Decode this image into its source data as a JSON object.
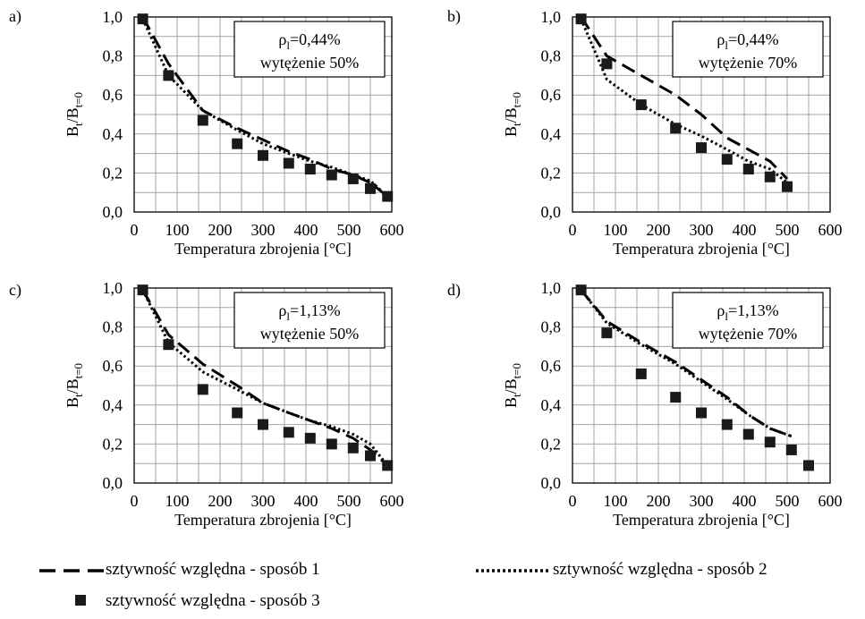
{
  "chart_data": [
    {
      "panel_label": "a)",
      "type": "line",
      "xlabel": "Temperatura zbrojenia [°C]",
      "ylabel_main": "B",
      "ylabel_sub1": "t",
      "ylabel_mid": "/B",
      "ylabel_sub2": "t=0",
      "xlim": [
        0,
        600
      ],
      "ylim": [
        0.0,
        1.0
      ],
      "xticks": [
        "0",
        "100",
        "200",
        "300",
        "400",
        "500",
        "600"
      ],
      "yticks": [
        "0,0",
        "0,2",
        "0,4",
        "0,6",
        "0,8",
        "1,0"
      ],
      "grid": true,
      "annotation": {
        "rho": "ρ",
        "rho_sub": "l",
        "rho_value": "=0,44%",
        "line2": "wytężenie 50%"
      },
      "series": [
        {
          "name": "sztywność względna - sposób 1",
          "style": "dashed",
          "points": [
            [
              20,
              1.0
            ],
            [
              80,
              0.76
            ],
            [
              160,
              0.52
            ],
            [
              240,
              0.43
            ],
            [
              300,
              0.37
            ],
            [
              360,
              0.31
            ],
            [
              410,
              0.27
            ],
            [
              460,
              0.22
            ],
            [
              510,
              0.19
            ],
            [
              550,
              0.15
            ],
            [
              590,
              0.08
            ]
          ]
        },
        {
          "name": "sztywność względna - sposób 2",
          "style": "dotted",
          "points": [
            [
              20,
              0.99
            ],
            [
              80,
              0.7
            ],
            [
              160,
              0.52
            ],
            [
              240,
              0.42
            ],
            [
              300,
              0.35
            ],
            [
              360,
              0.3
            ],
            [
              410,
              0.26
            ],
            [
              460,
              0.23
            ],
            [
              510,
              0.19
            ],
            [
              550,
              0.16
            ],
            [
              590,
              0.08
            ]
          ]
        },
        {
          "name": "sztywność względna - sposób 3",
          "style": "marker",
          "points": [
            [
              20,
              0.99
            ],
            [
              80,
              0.7
            ],
            [
              160,
              0.47
            ],
            [
              240,
              0.35
            ],
            [
              300,
              0.29
            ],
            [
              360,
              0.25
            ],
            [
              410,
              0.22
            ],
            [
              460,
              0.19
            ],
            [
              510,
              0.17
            ],
            [
              550,
              0.12
            ],
            [
              590,
              0.08
            ]
          ]
        }
      ]
    },
    {
      "panel_label": "b)",
      "type": "line",
      "xlabel": "Temperatura zbrojenia [°C]",
      "ylabel_main": "B",
      "ylabel_sub1": "t",
      "ylabel_mid": "/B",
      "ylabel_sub2": "t=0",
      "xlim": [
        0,
        600
      ],
      "ylim": [
        0.0,
        1.0
      ],
      "xticks": [
        "0",
        "100",
        "200",
        "300",
        "400",
        "500",
        "600"
      ],
      "yticks": [
        "0,0",
        "0,2",
        "0,4",
        "0,6",
        "0,8",
        "1,0"
      ],
      "grid": true,
      "annotation": {
        "rho": "ρ",
        "rho_sub": "l",
        "rho_value": "=0,44%",
        "line2": "wytężenie 70%"
      },
      "series": [
        {
          "name": "sztywność względna - sposób 1",
          "style": "dashed",
          "points": [
            [
              20,
              1.0
            ],
            [
              80,
              0.8
            ],
            [
              160,
              0.7
            ],
            [
              240,
              0.6
            ],
            [
              300,
              0.5
            ],
            [
              360,
              0.38
            ],
            [
              410,
              0.32
            ],
            [
              460,
              0.26
            ],
            [
              500,
              0.17
            ]
          ]
        },
        {
          "name": "sztywność względna - sposób 2",
          "style": "dotted",
          "points": [
            [
              20,
              0.99
            ],
            [
              80,
              0.68
            ],
            [
              160,
              0.55
            ],
            [
              240,
              0.45
            ],
            [
              300,
              0.39
            ],
            [
              360,
              0.32
            ],
            [
              410,
              0.26
            ],
            [
              460,
              0.22
            ],
            [
              500,
              0.15
            ]
          ]
        },
        {
          "name": "sztywność względna - sposób 3",
          "style": "marker",
          "points": [
            [
              20,
              0.99
            ],
            [
              80,
              0.76
            ],
            [
              160,
              0.55
            ],
            [
              240,
              0.43
            ],
            [
              300,
              0.33
            ],
            [
              360,
              0.27
            ],
            [
              410,
              0.22
            ],
            [
              460,
              0.18
            ],
            [
              500,
              0.13
            ]
          ]
        }
      ]
    },
    {
      "panel_label": "c)",
      "type": "line",
      "xlabel": "Temperatura zbrojenia [°C]",
      "ylabel_main": "B",
      "ylabel_sub1": "t",
      "ylabel_mid": "/B",
      "ylabel_sub2": "t=0",
      "xlim": [
        0,
        600
      ],
      "ylim": [
        0.0,
        1.0
      ],
      "xticks": [
        "0",
        "100",
        "200",
        "300",
        "400",
        "500",
        "600"
      ],
      "yticks": [
        "0,0",
        "0,2",
        "0,4",
        "0,6",
        "0,8",
        "1,0"
      ],
      "grid": true,
      "annotation": {
        "rho": "ρ",
        "rho_sub": "l",
        "rho_value": "=1,13%",
        "line2": "wytężenie 50%"
      },
      "series": [
        {
          "name": "sztywność względna - sposób 1",
          "style": "dashed",
          "points": [
            [
              20,
              0.99
            ],
            [
              80,
              0.76
            ],
            [
              160,
              0.61
            ],
            [
              240,
              0.5
            ],
            [
              300,
              0.41
            ],
            [
              360,
              0.36
            ],
            [
              410,
              0.32
            ],
            [
              460,
              0.28
            ],
            [
              510,
              0.23
            ],
            [
              550,
              0.17
            ],
            [
              590,
              0.09
            ]
          ]
        },
        {
          "name": "sztywność względna - sposób 2",
          "style": "dotted",
          "points": [
            [
              20,
              0.99
            ],
            [
              80,
              0.72
            ],
            [
              160,
              0.57
            ],
            [
              240,
              0.48
            ],
            [
              300,
              0.41
            ],
            [
              360,
              0.36
            ],
            [
              410,
              0.32
            ],
            [
              460,
              0.29
            ],
            [
              510,
              0.25
            ],
            [
              550,
              0.2
            ],
            [
              590,
              0.09
            ]
          ]
        },
        {
          "name": "sztywność względna - sposób 3",
          "style": "marker",
          "points": [
            [
              20,
              0.99
            ],
            [
              80,
              0.71
            ],
            [
              160,
              0.48
            ],
            [
              240,
              0.36
            ],
            [
              300,
              0.3
            ],
            [
              360,
              0.26
            ],
            [
              410,
              0.23
            ],
            [
              460,
              0.2
            ],
            [
              510,
              0.18
            ],
            [
              550,
              0.14
            ],
            [
              590,
              0.09
            ]
          ]
        }
      ]
    },
    {
      "panel_label": "d)",
      "type": "line",
      "xlabel": "Temperatura zbrojenia [°C]",
      "ylabel_main": "B",
      "ylabel_sub1": "t",
      "ylabel_mid": "/B",
      "ylabel_sub2": "t=0",
      "xlim": [
        0,
        600
      ],
      "ylim": [
        0.0,
        1.0
      ],
      "xticks": [
        "0",
        "100",
        "200",
        "300",
        "400",
        "500",
        "600"
      ],
      "yticks": [
        "0,0",
        "0,2",
        "0,4",
        "0,6",
        "0,8",
        "1,0"
      ],
      "grid": true,
      "annotation": {
        "rho": "ρ",
        "rho_sub": "l",
        "rho_value": "=1,13%",
        "line2": "wytężenie 70%"
      },
      "series": [
        {
          "name": "sztywność względna - sposób 1",
          "style": "dashed",
          "points": [
            [
              20,
              0.99
            ],
            [
              80,
              0.83
            ],
            [
              160,
              0.72
            ],
            [
              240,
              0.62
            ],
            [
              300,
              0.53
            ],
            [
              360,
              0.44
            ],
            [
              410,
              0.35
            ],
            [
              460,
              0.28
            ],
            [
              510,
              0.24
            ]
          ]
        },
        {
          "name": "sztywność względna - sposób 2",
          "style": "dotted",
          "points": [
            [
              20,
              0.99
            ],
            [
              80,
              0.82
            ],
            [
              160,
              0.71
            ],
            [
              240,
              0.61
            ],
            [
              300,
              0.52
            ],
            [
              360,
              0.43
            ],
            [
              410,
              0.35
            ],
            [
              460,
              0.28
            ],
            [
              510,
              0.24
            ]
          ]
        },
        {
          "name": "sztywność względna - sposób 3",
          "style": "marker",
          "points": [
            [
              20,
              0.99
            ],
            [
              80,
              0.77
            ],
            [
              160,
              0.56
            ],
            [
              240,
              0.44
            ],
            [
              300,
              0.36
            ],
            [
              360,
              0.3
            ],
            [
              410,
              0.25
            ],
            [
              460,
              0.21
            ],
            [
              510,
              0.17
            ],
            [
              550,
              0.09
            ]
          ]
        }
      ]
    }
  ],
  "legend": {
    "position": "bottom",
    "items": [
      {
        "label": "sztywność względna - sposób 1",
        "style": "dashed"
      },
      {
        "label": "sztywność względna - sposób 2",
        "style": "dotted"
      },
      {
        "label": "sztywność względna - sposób 3",
        "style": "marker"
      }
    ]
  },
  "colors": {
    "line": "#000000",
    "marker": "#1a1a1a",
    "grid": "#a6a6a6",
    "frame": "#000000"
  }
}
